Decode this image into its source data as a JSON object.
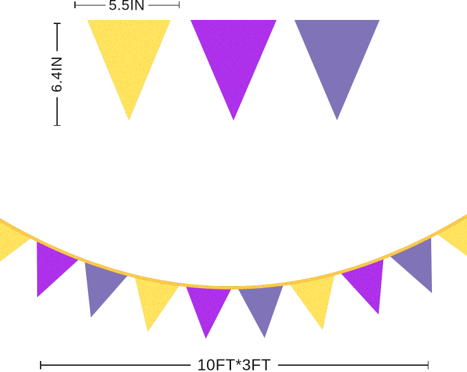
{
  "dimensions": {
    "flag_width_label": "5.5IN",
    "flag_height_label": "6.4IN",
    "banner_length_label": "10FT*3FT"
  },
  "colors": {
    "gold": "#e8c24f",
    "purple": "#9427c9",
    "lavender": "#8173b8",
    "rope": "#d9ac3e",
    "dimension_line": "#2b2b2b",
    "label_text": "#111111",
    "background": "#ffffff"
  },
  "top_banner": {
    "flag_colors": [
      "gold",
      "purple",
      "lavender"
    ]
  },
  "bottom_banner": {
    "flag_colors": [
      "gold",
      "purple",
      "lavender",
      "gold",
      "purple",
      "lavender",
      "gold",
      "purple",
      "lavender",
      "gold"
    ]
  }
}
